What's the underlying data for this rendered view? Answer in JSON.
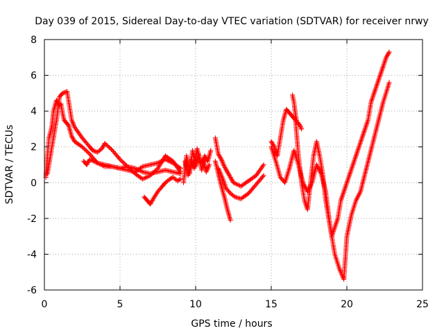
{
  "chart_data": {
    "type": "scatter",
    "title": "Day 039 of 2015, Sidereal Day-to-day VTEC variation (SDTVAR) for receiver nrwy",
    "xlabel": "GPS time / hours",
    "ylabel": "SDTVAR / TECUs",
    "xlim": [
      0,
      25
    ],
    "ylim": [
      -6,
      8
    ],
    "xticks": [
      "0",
      "5",
      "10",
      "15",
      "20",
      "25"
    ],
    "yticks": [
      "-6",
      "-4",
      "-2",
      "0",
      "2",
      "4",
      "6",
      "8"
    ],
    "grid": true,
    "marker": "plus",
    "color": "#ff0000",
    "series": [
      {
        "x": [
          0.1,
          0.2,
          0.3,
          0.4,
          0.5,
          0.6,
          0.8,
          1.0,
          1.1,
          1.2,
          1.3,
          1.4,
          1.6,
          1.8,
          2.0,
          2.5,
          3.0,
          3.5,
          4.0,
          4.5,
          5.0,
          5.5,
          6.0,
          6.5,
          7.0,
          7.5,
          8.0,
          8.5,
          9.0
        ],
        "y": [
          0.3,
          1.5,
          2.5,
          2.8,
          3.2,
          4.0,
          4.6,
          4.3,
          4.4,
          3.9,
          3.5,
          3.4,
          3.2,
          2.6,
          2.3,
          2.0,
          1.6,
          1.1,
          0.9,
          0.9,
          0.8,
          0.7,
          0.6,
          0.9,
          1.0,
          1.1,
          1.3,
          1.1,
          0.8
        ]
      },
      {
        "x": [
          0.2,
          0.5,
          0.8,
          1.0,
          1.2,
          1.5,
          1.8,
          2.0,
          2.5,
          3.0,
          3.2,
          3.5,
          3.8,
          4.0,
          4.5,
          5.0,
          5.5,
          6.0,
          6.5,
          7.0,
          7.5,
          8.0,
          8.5,
          9.0
        ],
        "y": [
          0.5,
          2.0,
          3.5,
          4.8,
          5.0,
          5.1,
          3.5,
          3.1,
          2.5,
          2.0,
          1.8,
          1.7,
          1.9,
          2.2,
          1.8,
          1.3,
          0.9,
          0.5,
          0.2,
          0.4,
          0.8,
          1.5,
          1.2,
          0.6
        ]
      },
      {
        "x": [
          2.6,
          2.8,
          3.0,
          3.5,
          4.0,
          4.5,
          5.0,
          5.5,
          6.0,
          6.5,
          7.0,
          7.5,
          8.0,
          8.5,
          9.0
        ],
        "y": [
          1.2,
          1.0,
          1.3,
          1.1,
          1.0,
          0.9,
          0.8,
          0.9,
          0.8,
          0.6,
          0.5,
          0.6,
          0.7,
          0.6,
          0.5
        ]
      },
      {
        "x": [
          6.6,
          6.8,
          7.0,
          7.2,
          7.5,
          7.8,
          8.0,
          8.3,
          8.5,
          8.8,
          9.0
        ],
        "y": [
          -0.8,
          -1.0,
          -1.2,
          -0.9,
          -0.5,
          -0.2,
          0.0,
          0.2,
          0.3,
          0.1,
          0.2
        ]
      },
      {
        "x": [
          9.2,
          9.4,
          9.6,
          9.8,
          10.0,
          10.2,
          10.4,
          10.6,
          10.8,
          11.0
        ],
        "y": [
          0.0,
          1.5,
          0.5,
          1.8,
          0.9,
          1.6,
          0.7,
          1.5,
          1.2,
          1.8
        ]
      },
      {
        "x": [
          9.3,
          9.5,
          9.7,
          9.9,
          10.1,
          10.3,
          10.5,
          10.7,
          10.9
        ],
        "y": [
          1.2,
          0.4,
          1.3,
          0.8,
          1.9,
          1.1,
          1.3,
          0.6,
          1.0
        ]
      },
      {
        "x": [
          11.3,
          11.5,
          11.7,
          11.9,
          12.1,
          12.3,
          12.5,
          13.0,
          13.5,
          14.0,
          14.5
        ],
        "y": [
          2.5,
          1.6,
          1.3,
          0.9,
          0.6,
          0.3,
          0.0,
          -0.2,
          0.1,
          0.4,
          1.0
        ]
      },
      {
        "x": [
          11.3,
          11.5,
          11.7,
          11.9,
          12.1,
          12.3
        ],
        "y": [
          1.2,
          0.5,
          -0.2,
          -0.8,
          -1.5,
          -2.1
        ]
      },
      {
        "x": [
          11.5,
          11.8,
          12.0,
          12.3,
          12.6,
          13.0,
          13.5,
          14.0,
          14.5
        ],
        "y": [
          0.8,
          0.2,
          -0.3,
          -0.6,
          -0.8,
          -0.9,
          -0.6,
          -0.1,
          0.4
        ]
      },
      {
        "x": [
          15.0,
          15.2,
          15.4,
          15.6,
          15.8,
          16.0,
          16.2,
          16.4,
          16.6,
          16.8,
          17.0,
          17.2,
          17.4,
          17.6,
          17.8,
          18.0,
          18.2,
          18.4,
          18.6,
          18.8,
          19.0,
          19.2,
          19.4,
          19.6,
          19.8,
          20.0,
          20.2,
          20.4,
          20.6,
          20.8,
          21.0,
          21.2,
          21.4,
          21.6,
          21.8,
          22.0,
          22.2,
          22.4,
          22.6,
          22.8
        ],
        "y": [
          2.3,
          2.0,
          1.5,
          2.5,
          3.5,
          4.1,
          3.9,
          3.7,
          3.5,
          1.5,
          0.0,
          -1.0,
          -1.5,
          0.0,
          1.5,
          2.3,
          1.5,
          0.5,
          -1.0,
          -2.0,
          -3.0,
          -2.5,
          -2.0,
          -1.0,
          -0.5,
          0.0,
          0.5,
          1.0,
          1.5,
          2.0,
          2.5,
          3.0,
          3.5,
          4.5,
          5.0,
          5.5,
          6.0,
          6.5,
          7.0,
          7.3
        ]
      },
      {
        "x": [
          15.0,
          15.3,
          15.6,
          15.9,
          16.2,
          16.5,
          16.8,
          17.1,
          17.4,
          17.7,
          18.0,
          18.3,
          18.6,
          18.9,
          19.2,
          19.5,
          19.7,
          19.8,
          20.0,
          20.3,
          20.6,
          20.9,
          21.2,
          21.5,
          21.8,
          22.1,
          22.4,
          22.7,
          22.8
        ],
        "y": [
          2.0,
          1.2,
          0.3,
          0.0,
          0.8,
          1.8,
          1.0,
          0.0,
          -0.5,
          0.0,
          1.0,
          0.5,
          -0.5,
          -2.5,
          -4.0,
          -4.8,
          -5.2,
          -5.4,
          -3.0,
          -1.8,
          -1.0,
          -0.5,
          0.5,
          1.5,
          2.5,
          3.5,
          4.5,
          5.3,
          5.6
        ]
      },
      {
        "x": [
          16.4,
          16.5,
          16.6,
          16.7,
          16.8,
          16.9,
          17.0
        ],
        "y": [
          4.9,
          4.5,
          3.8,
          3.4,
          3.3,
          3.2,
          3.0
        ]
      }
    ]
  }
}
